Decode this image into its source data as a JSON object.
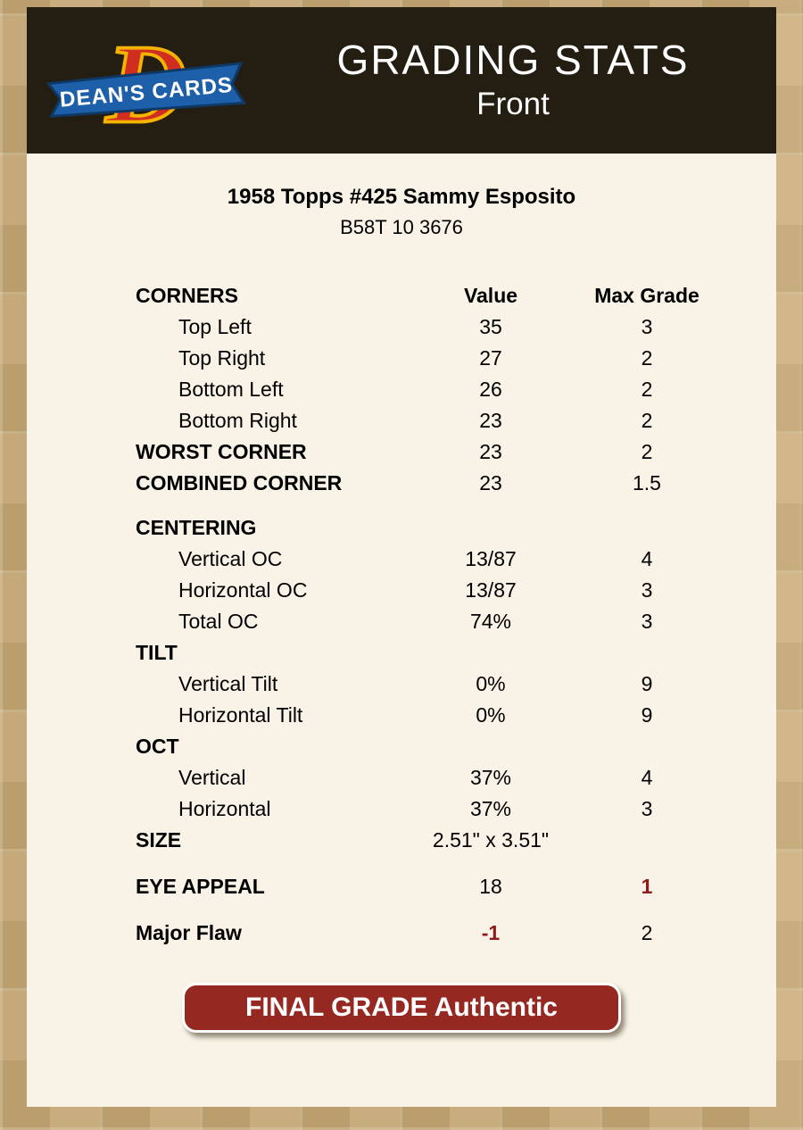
{
  "header": {
    "logo": {
      "monogram": "D",
      "brand": "DEAN'S CARDS"
    },
    "title": "GRADING STATS",
    "subtitle": "Front"
  },
  "card": {
    "title": "1958 Topps #425 Sammy Esposito",
    "code": "B58T 10 3676"
  },
  "table": {
    "groups": [
      {
        "rows": [
          {
            "label": "CORNERS",
            "value": "Value",
            "max": "Max Grade",
            "kind": "colhead"
          },
          {
            "label": "Top Left",
            "value": "35",
            "max": "3",
            "kind": "item"
          },
          {
            "label": "Top Right",
            "value": "27",
            "max": "2",
            "kind": "item"
          },
          {
            "label": "Bottom Left",
            "value": "26",
            "max": "2",
            "kind": "item"
          },
          {
            "label": "Bottom Right",
            "value": "23",
            "max": "2",
            "kind": "item"
          },
          {
            "label": "WORST CORNER",
            "value": "23",
            "max": "2",
            "kind": "section"
          },
          {
            "label": "COMBINED CORNER",
            "value": "23",
            "max": "1.5",
            "kind": "section"
          }
        ]
      },
      {
        "rows": [
          {
            "label": "CENTERING",
            "value": "",
            "max": "",
            "kind": "section"
          },
          {
            "label": "Vertical OC",
            "value": "13/87",
            "max": "4",
            "kind": "item"
          },
          {
            "label": "Horizontal OC",
            "value": "13/87",
            "max": "3",
            "kind": "item"
          },
          {
            "label": "Total OC",
            "value": "74%",
            "max": "3",
            "kind": "item"
          },
          {
            "label": "TILT",
            "value": "",
            "max": "",
            "kind": "section"
          },
          {
            "label": "Vertical Tilt",
            "value": "0%",
            "max": "9",
            "kind": "item"
          },
          {
            "label": "Horizontal Tilt",
            "value": "0%",
            "max": "9",
            "kind": "item"
          },
          {
            "label": "OCT",
            "value": "",
            "max": "",
            "kind": "section"
          },
          {
            "label": "Vertical",
            "value": "37%",
            "max": "4",
            "kind": "item"
          },
          {
            "label": "Horizontal",
            "value": "37%",
            "max": "3",
            "kind": "item"
          },
          {
            "label": "SIZE",
            "value": "2.51\" x 3.51\"",
            "max": "",
            "kind": "section"
          }
        ]
      },
      {
        "rows": [
          {
            "label": "EYE APPEAL",
            "value": "18",
            "max": "1",
            "kind": "section",
            "max_red": true
          }
        ]
      },
      {
        "rows": [
          {
            "label": "Major Flaw",
            "value": "-1",
            "max": "2",
            "kind": "section",
            "value_red": true
          }
        ]
      }
    ]
  },
  "final_grade": {
    "label": "FINAL GRADE Authentic"
  },
  "colors": {
    "page_background": "#c7aa79",
    "panel_background": "#f8f3e6",
    "header_background": "#241e12",
    "accent_red": "#952820",
    "text_red": "#8c1c1c",
    "logo_red": "#cf2e21",
    "logo_gold": "#f5b300",
    "logo_blue": "#1d5fa8"
  }
}
